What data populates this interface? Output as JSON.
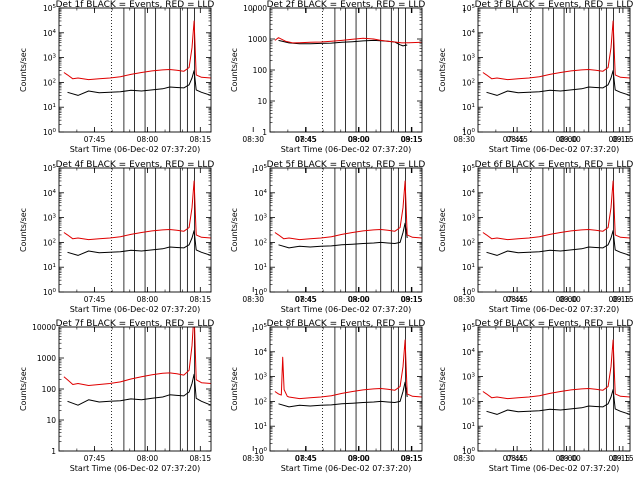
{
  "figure": {
    "time_range": {
      "start": "07:37:20",
      "end": "08:18:00"
    },
    "x_tick_labels": [
      "07:45",
      "08:00",
      "08:15",
      "08:30",
      "08:45",
      "09:00",
      "09:15"
    ],
    "x_tick_times_min": [
      7.67,
      22.67,
      37.67,
      52.67,
      67.67,
      82.67,
      97.67
    ],
    "x_label": "Start Time (06-Dec-02 07:37:20)",
    "y_label": "Counts/sec",
    "dotted_marker_min": 12.5,
    "segment_boundaries_min": [
      16,
      19,
      22,
      25,
      29,
      32,
      34,
      36
    ]
  },
  "chart_data": [
    {
      "type": "line",
      "title": "Det 1f BLACK = Events, RED = LLD",
      "yscale": "log",
      "ylim": [
        1,
        100000
      ],
      "y_tick_labels": [
        "10^0",
        "10^1",
        "10^2",
        "10^3",
        "10^4",
        "10^5"
      ],
      "series": [
        {
          "name": "Events",
          "color": "#000000",
          "x": [
            0,
            3,
            6,
            9,
            12,
            15,
            18,
            21,
            24,
            27,
            29,
            31,
            33,
            34.5,
            35.3,
            35.9,
            36.5,
            38,
            40.7
          ],
          "y": [
            40,
            30,
            45,
            38,
            40,
            42,
            48,
            45,
            50,
            55,
            65,
            62,
            60,
            80,
            150,
            300,
            50,
            40,
            30
          ]
        },
        {
          "name": "LLD",
          "color": "#e00000",
          "x": [
            -1,
            0,
            1.5,
            3,
            6,
            9,
            12,
            15,
            18,
            21,
            24,
            27,
            29,
            31,
            33,
            34.5,
            35.3,
            35.9,
            36.5,
            38,
            40.7
          ],
          "y": [
            250,
            200,
            140,
            150,
            130,
            140,
            150,
            170,
            210,
            250,
            290,
            320,
            330,
            310,
            280,
            400,
            2500,
            30000,
            200,
            160,
            150
          ]
        }
      ]
    },
    {
      "type": "line",
      "title": "Det 2f BLACK = Events, RED = LLD",
      "yscale": "log",
      "ylim": [
        1,
        10000
      ],
      "y_tick_labels": [
        "1",
        "10",
        "100",
        "1000",
        "10000"
      ],
      "series": [
        {
          "name": "Events",
          "color": "#000000",
          "x": [
            0,
            3,
            6,
            9,
            12,
            15,
            18,
            21,
            24,
            27,
            29,
            31,
            33,
            34.5,
            35.3,
            35.9,
            36.5
          ],
          "y": [
            900,
            750,
            700,
            700,
            720,
            740,
            780,
            820,
            870,
            900,
            880,
            850,
            800,
            650,
            600,
            620,
            640
          ]
        },
        {
          "name": "LLD",
          "color": "#e00000",
          "x": [
            -1,
            0,
            2,
            4,
            6,
            9,
            12,
            15,
            18,
            21,
            24,
            27,
            29,
            31,
            33,
            35,
            37,
            40.7
          ],
          "y": [
            900,
            1100,
            850,
            750,
            760,
            780,
            800,
            840,
            900,
            980,
            1050,
            1000,
            900,
            850,
            800,
            750,
            760,
            780
          ]
        }
      ]
    },
    {
      "type": "line",
      "title": "Det 3f BLACK = Events, RED = LLD",
      "yscale": "log",
      "ylim": [
        1,
        100000
      ],
      "y_tick_labels": [
        "10^0",
        "10^1",
        "10^2",
        "10^3",
        "10^4",
        "10^5"
      ],
      "series": [
        {
          "name": "Events",
          "color": "#000000",
          "x": [
            0,
            3,
            6,
            9,
            12,
            15,
            18,
            21,
            24,
            27,
            29,
            31,
            33,
            34.5,
            35.3,
            35.9,
            36.5,
            38,
            40.7
          ],
          "y": [
            40,
            30,
            45,
            38,
            40,
            42,
            48,
            45,
            50,
            55,
            65,
            62,
            60,
            80,
            150,
            300,
            50,
            40,
            30
          ]
        },
        {
          "name": "LLD",
          "color": "#e00000",
          "x": [
            -1,
            0,
            1.5,
            3,
            6,
            9,
            12,
            15,
            18,
            21,
            24,
            27,
            29,
            31,
            33,
            34.5,
            35.3,
            35.9,
            36.5,
            38,
            40.7
          ],
          "y": [
            250,
            200,
            140,
            150,
            130,
            140,
            150,
            170,
            210,
            250,
            290,
            320,
            330,
            310,
            280,
            400,
            2500,
            30000,
            200,
            160,
            150
          ]
        }
      ]
    },
    {
      "type": "line",
      "title": "Det 4f BLACK = Events, RED = LLD",
      "yscale": "log",
      "ylim": [
        1,
        100000
      ],
      "y_tick_labels": [
        "10^0",
        "10^1",
        "10^2",
        "10^3",
        "10^4",
        "10^5"
      ],
      "series": [
        {
          "name": "Events",
          "color": "#000000",
          "x": [
            0,
            3,
            6,
            9,
            12,
            15,
            18,
            21,
            24,
            27,
            29,
            31,
            33,
            34.5,
            35.3,
            35.9,
            36.5,
            38,
            40.7
          ],
          "y": [
            40,
            30,
            45,
            38,
            40,
            42,
            48,
            45,
            50,
            55,
            65,
            62,
            60,
            80,
            150,
            300,
            50,
            40,
            30
          ]
        },
        {
          "name": "LLD",
          "color": "#e00000",
          "x": [
            -1,
            0,
            1.5,
            3,
            6,
            9,
            12,
            15,
            18,
            21,
            24,
            27,
            29,
            31,
            33,
            34.5,
            35.3,
            35.9,
            36.5,
            38,
            40.7
          ],
          "y": [
            250,
            200,
            140,
            150,
            130,
            140,
            150,
            170,
            210,
            250,
            290,
            320,
            330,
            310,
            280,
            400,
            2500,
            30000,
            200,
            160,
            150
          ]
        }
      ]
    },
    {
      "type": "line",
      "title": "Det 5f BLACK = Events, RED = LLD",
      "yscale": "log",
      "ylim": [
        1,
        100000
      ],
      "y_tick_labels": [
        "10^0",
        "10^1",
        "10^2",
        "10^3",
        "10^4",
        "10^5"
      ],
      "series": [
        {
          "name": "Events",
          "color": "#000000",
          "x": [
            0,
            3,
            6,
            9,
            12,
            15,
            18,
            21,
            24,
            27,
            29,
            31,
            33,
            34.5,
            35.3,
            35.9,
            36.5
          ],
          "y": [
            80,
            60,
            70,
            65,
            70,
            72,
            80,
            85,
            90,
            95,
            100,
            95,
            90,
            100,
            250,
            600,
            150
          ]
        },
        {
          "name": "LLD",
          "color": "#e00000",
          "x": [
            -1,
            0,
            1.5,
            3,
            6,
            9,
            12,
            15,
            18,
            21,
            24,
            27,
            29,
            31,
            33,
            34.5,
            35.3,
            35.9,
            36.5,
            38,
            40.7
          ],
          "y": [
            250,
            200,
            140,
            150,
            130,
            140,
            150,
            170,
            210,
            250,
            290,
            320,
            330,
            310,
            280,
            400,
            2500,
            30000,
            200,
            160,
            150
          ]
        }
      ]
    },
    {
      "type": "line",
      "title": "Det 6f BLACK = Events, RED = LLD",
      "yscale": "log",
      "ylim": [
        1,
        100000
      ],
      "y_tick_labels": [
        "10^0",
        "10^1",
        "10^2",
        "10^3",
        "10^4",
        "10^5"
      ],
      "series": [
        {
          "name": "Events",
          "color": "#000000",
          "x": [
            0,
            3,
            6,
            9,
            12,
            15,
            18,
            21,
            24,
            27,
            29,
            31,
            33,
            34.5,
            35.3,
            35.9,
            36.5,
            38,
            40.7
          ],
          "y": [
            40,
            30,
            45,
            38,
            40,
            42,
            48,
            45,
            50,
            55,
            65,
            62,
            60,
            80,
            150,
            300,
            50,
            40,
            30
          ]
        },
        {
          "name": "LLD",
          "color": "#e00000",
          "x": [
            -1,
            0,
            1.5,
            3,
            6,
            9,
            12,
            15,
            18,
            21,
            24,
            27,
            29,
            31,
            33,
            34.5,
            35.3,
            35.9,
            36.5,
            38,
            40.7
          ],
          "y": [
            250,
            200,
            140,
            150,
            130,
            140,
            150,
            170,
            210,
            250,
            290,
            320,
            330,
            310,
            280,
            400,
            2500,
            30000,
            200,
            160,
            150
          ]
        }
      ]
    },
    {
      "type": "line",
      "title": "Det 7f BLACK = Events, RED = LLD",
      "yscale": "log",
      "ylim": [
        1,
        10000
      ],
      "y_tick_labels": [
        "1",
        "10",
        "100",
        "1000",
        "10000"
      ],
      "series": [
        {
          "name": "Events",
          "color": "#000000",
          "x": [
            0,
            3,
            6,
            9,
            12,
            15,
            18,
            21,
            24,
            27,
            29,
            31,
            33,
            34.5,
            35.3,
            35.9,
            36.5,
            38,
            40.7
          ],
          "y": [
            40,
            30,
            45,
            38,
            40,
            42,
            48,
            45,
            50,
            55,
            65,
            62,
            60,
            80,
            150,
            300,
            50,
            40,
            30
          ]
        },
        {
          "name": "LLD",
          "color": "#e00000",
          "x": [
            -1,
            0,
            1.5,
            3,
            6,
            9,
            12,
            15,
            18,
            21,
            24,
            27,
            29,
            31,
            33,
            34.5,
            35.3,
            35.9,
            36.5,
            38,
            40.7
          ],
          "y": [
            250,
            200,
            140,
            150,
            130,
            140,
            150,
            170,
            210,
            250,
            290,
            320,
            330,
            310,
            280,
            400,
            2500,
            30000,
            200,
            160,
            150
          ]
        }
      ]
    },
    {
      "type": "line",
      "title": "Det 8f BLACK = Events, RED = LLD",
      "yscale": "log",
      "ylim": [
        1,
        100000
      ],
      "y_tick_labels": [
        "10^0",
        "10^1",
        "10^2",
        "10^3",
        "10^4",
        "10^5"
      ],
      "series": [
        {
          "name": "Events",
          "color": "#000000",
          "x": [
            0,
            3,
            6,
            9,
            12,
            15,
            18,
            21,
            24,
            27,
            29,
            31,
            33,
            34.5,
            35.3,
            35.9,
            36.5
          ],
          "y": [
            80,
            60,
            70,
            65,
            70,
            72,
            80,
            85,
            90,
            95,
            100,
            95,
            90,
            100,
            250,
            600,
            150
          ]
        },
        {
          "name": "LLD",
          "color": "#e00000",
          "x": [
            -1,
            0,
            0.8,
            1.2,
            1.6,
            2.5,
            3,
            6,
            9,
            12,
            15,
            18,
            21,
            24,
            27,
            29,
            31,
            33,
            34.5,
            35.3,
            35.9,
            36.5,
            38,
            40.7
          ],
          "y": [
            250,
            200,
            180,
            6000,
            300,
            160,
            150,
            130,
            140,
            150,
            170,
            210,
            250,
            290,
            320,
            330,
            310,
            280,
            400,
            2500,
            30000,
            200,
            160,
            150
          ]
        }
      ]
    },
    {
      "type": "line",
      "title": "Det 9f BLACK = Events, RED = LLD",
      "yscale": "log",
      "ylim": [
        1,
        100000
      ],
      "y_tick_labels": [
        "10^0",
        "10^1",
        "10^2",
        "10^3",
        "10^4",
        "10^5"
      ],
      "series": [
        {
          "name": "Events",
          "color": "#000000",
          "x": [
            0,
            3,
            6,
            9,
            12,
            15,
            18,
            21,
            24,
            27,
            29,
            31,
            33,
            34.5,
            35.3,
            35.9,
            36.5,
            38,
            40.7
          ],
          "y": [
            40,
            30,
            45,
            38,
            40,
            42,
            48,
            45,
            50,
            55,
            65,
            62,
            60,
            80,
            150,
            300,
            50,
            40,
            30
          ]
        },
        {
          "name": "LLD",
          "color": "#e00000",
          "x": [
            -1,
            0,
            1.5,
            3,
            6,
            9,
            12,
            15,
            18,
            21,
            24,
            27,
            29,
            31,
            33,
            34.5,
            35.3,
            35.9,
            36.5,
            38,
            40.7
          ],
          "y": [
            250,
            200,
            140,
            150,
            130,
            140,
            150,
            170,
            210,
            250,
            290,
            320,
            330,
            310,
            280,
            400,
            2500,
            30000,
            200,
            160,
            150
          ]
        }
      ]
    }
  ]
}
